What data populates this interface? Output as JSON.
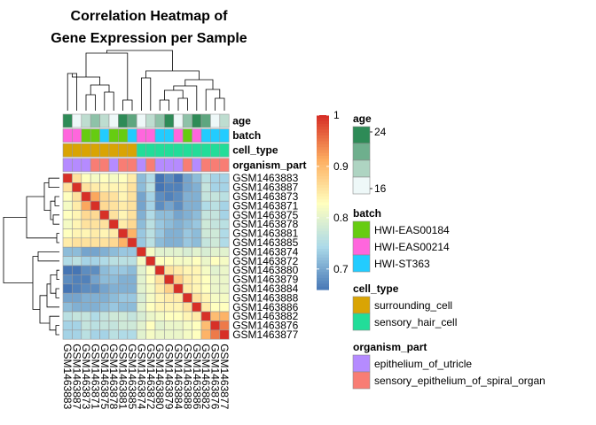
{
  "chart_data": {
    "type": "heatmap",
    "title_lines": [
      "Correlation Heatmap of",
      "Gene Expression per Sample"
    ],
    "samples": [
      "GSM1463883",
      "GSM1463887",
      "GSM1463873",
      "GSM1463871",
      "GSM1463875",
      "GSM1463878",
      "GSM1463881",
      "GSM1463885",
      "GSM1463874",
      "GSM1463872",
      "GSM1463880",
      "GSM1463879",
      "GSM1463884",
      "GSM1463888",
      "GSM1463886",
      "GSM1463882",
      "GSM1463876",
      "GSM1463877"
    ],
    "values": [
      [
        1.0,
        0.86,
        0.83,
        0.82,
        0.83,
        0.82,
        0.83,
        0.85,
        0.72,
        0.75,
        0.66,
        0.68,
        0.66,
        0.7,
        0.72,
        0.76,
        0.74,
        0.74
      ],
      [
        0.86,
        1.0,
        0.86,
        0.85,
        0.84,
        0.84,
        0.84,
        0.86,
        0.72,
        0.76,
        0.66,
        0.67,
        0.67,
        0.7,
        0.71,
        0.77,
        0.74,
        0.74
      ],
      [
        0.83,
        0.86,
        1.0,
        0.92,
        0.87,
        0.86,
        0.84,
        0.86,
        0.7,
        0.74,
        0.68,
        0.67,
        0.68,
        0.71,
        0.71,
        0.77,
        0.77,
        0.76
      ],
      [
        0.82,
        0.85,
        0.92,
        1.0,
        0.87,
        0.86,
        0.85,
        0.86,
        0.7,
        0.74,
        0.68,
        0.7,
        0.68,
        0.71,
        0.71,
        0.75,
        0.76,
        0.74
      ],
      [
        0.83,
        0.84,
        0.87,
        0.87,
        1.0,
        0.86,
        0.84,
        0.86,
        0.71,
        0.75,
        0.72,
        0.72,
        0.7,
        0.71,
        0.72,
        0.77,
        0.77,
        0.74
      ],
      [
        0.82,
        0.84,
        0.86,
        0.86,
        0.86,
        1.0,
        0.85,
        0.87,
        0.72,
        0.76,
        0.73,
        0.72,
        0.71,
        0.72,
        0.73,
        0.78,
        0.77,
        0.76
      ],
      [
        0.83,
        0.84,
        0.84,
        0.85,
        0.84,
        0.85,
        1.0,
        0.91,
        0.73,
        0.76,
        0.73,
        0.71,
        0.71,
        0.73,
        0.72,
        0.78,
        0.78,
        0.75
      ],
      [
        0.85,
        0.86,
        0.86,
        0.86,
        0.86,
        0.87,
        0.91,
        1.0,
        0.73,
        0.76,
        0.72,
        0.71,
        0.71,
        0.73,
        0.72,
        0.77,
        0.78,
        0.75
      ],
      [
        0.72,
        0.72,
        0.7,
        0.7,
        0.71,
        0.72,
        0.73,
        0.73,
        1.0,
        0.82,
        0.8,
        0.8,
        0.8,
        0.79,
        0.8,
        0.79,
        0.8,
        0.8
      ],
      [
        0.75,
        0.76,
        0.74,
        0.74,
        0.75,
        0.76,
        0.76,
        0.76,
        0.82,
        1.0,
        0.83,
        0.83,
        0.82,
        0.82,
        0.83,
        0.81,
        0.83,
        0.82
      ],
      [
        0.66,
        0.66,
        0.68,
        0.68,
        0.72,
        0.73,
        0.73,
        0.72,
        0.8,
        0.83,
        1.0,
        0.86,
        0.85,
        0.84,
        0.84,
        0.82,
        0.8,
        0.81
      ],
      [
        0.68,
        0.67,
        0.67,
        0.7,
        0.72,
        0.72,
        0.71,
        0.71,
        0.8,
        0.83,
        0.86,
        1.0,
        0.88,
        0.85,
        0.84,
        0.83,
        0.81,
        0.81
      ],
      [
        0.66,
        0.67,
        0.68,
        0.68,
        0.7,
        0.71,
        0.71,
        0.71,
        0.8,
        0.82,
        0.85,
        0.88,
        1.0,
        0.85,
        0.84,
        0.83,
        0.81,
        0.81
      ],
      [
        0.7,
        0.7,
        0.71,
        0.71,
        0.71,
        0.72,
        0.73,
        0.73,
        0.79,
        0.82,
        0.84,
        0.85,
        0.85,
        1.0,
        0.86,
        0.84,
        0.82,
        0.82
      ],
      [
        0.72,
        0.71,
        0.71,
        0.71,
        0.72,
        0.73,
        0.72,
        0.72,
        0.8,
        0.83,
        0.84,
        0.84,
        0.84,
        0.86,
        1.0,
        0.85,
        0.83,
        0.83
      ],
      [
        0.76,
        0.77,
        0.77,
        0.75,
        0.77,
        0.78,
        0.78,
        0.77,
        0.79,
        0.81,
        0.82,
        0.83,
        0.83,
        0.84,
        0.85,
        1.0,
        0.9,
        0.91
      ],
      [
        0.74,
        0.74,
        0.77,
        0.76,
        0.77,
        0.77,
        0.78,
        0.78,
        0.8,
        0.83,
        0.8,
        0.81,
        0.81,
        0.82,
        0.83,
        0.9,
        1.0,
        0.95
      ],
      [
        0.74,
        0.74,
        0.76,
        0.74,
        0.74,
        0.76,
        0.75,
        0.75,
        0.8,
        0.82,
        0.81,
        0.81,
        0.81,
        0.82,
        0.83,
        0.91,
        0.95,
        1.0
      ]
    ],
    "annotation_rows": [
      "age",
      "batch",
      "cell_type",
      "organism_part"
    ],
    "annotations": {
      "age": [
        24,
        16,
        18,
        20,
        18,
        16,
        24,
        22,
        16,
        18,
        20,
        24,
        16,
        20,
        24,
        22,
        16,
        18
      ],
      "batch": [
        "HWI-EAS00214",
        "HWI-EAS00214",
        "HWI-EAS00184",
        "HWI-EAS00184",
        "HWI-ST363",
        "HWI-EAS00184",
        "HWI-EAS00184",
        "HWI-ST363",
        "HWI-EAS00214",
        "HWI-EAS00214",
        "HWI-ST363",
        "HWI-ST363",
        "HWI-EAS00214",
        "HWI-EAS00184",
        "HWI-EAS00214",
        "HWI-ST363",
        "HWI-ST363",
        "HWI-ST363"
      ],
      "cell_type": [
        "surrounding_cell",
        "surrounding_cell",
        "surrounding_cell",
        "surrounding_cell",
        "surrounding_cell",
        "surrounding_cell",
        "surrounding_cell",
        "surrounding_cell",
        "sensory_hair_cell",
        "sensory_hair_cell",
        "sensory_hair_cell",
        "sensory_hair_cell",
        "sensory_hair_cell",
        "sensory_hair_cell",
        "sensory_hair_cell",
        "sensory_hair_cell",
        "sensory_hair_cell",
        "sensory_hair_cell"
      ],
      "organism_part": [
        "epithelium_of_utricle",
        "epithelium_of_utricle",
        "epithelium_of_utricle",
        "sensory_epithelium_of_spiral_organ",
        "sensory_epithelium_of_spiral_organ",
        "epithelium_of_utricle",
        "sensory_epithelium_of_spiral_organ",
        "sensory_epithelium_of_spiral_organ",
        "epithelium_of_utricle",
        "sensory_epithelium_of_spiral_organ",
        "epithelium_of_utricle",
        "epithelium_of_utricle",
        "epithelium_of_utricle",
        "sensory_epithelium_of_spiral_organ",
        "epithelium_of_utricle",
        "sensory_epithelium_of_spiral_organ",
        "sensory_epithelium_of_spiral_organ",
        "sensory_epithelium_of_spiral_organ"
      ]
    },
    "color_scale": {
      "min": 0.66,
      "max": 1.0,
      "stops": [
        "#4575b4",
        "#abd9e9",
        "#ffffbf",
        "#fdae61",
        "#d73027"
      ],
      "ticks": [
        0.7,
        0.8,
        0.9,
        1
      ]
    },
    "legend": {
      "age": {
        "title": "age",
        "ticks": [
          24,
          16
        ],
        "colors": [
          "#2e8b57",
          "#eef8f8"
        ]
      },
      "batch": {
        "title": "batch",
        "items": [
          {
            "label": "HWI-EAS00184",
            "color": "#66cc11"
          },
          {
            "label": "HWI-EAS00214",
            "color": "#ff66dd"
          },
          {
            "label": "HWI-ST363",
            "color": "#22ccff"
          }
        ]
      },
      "cell_type": {
        "title": "cell_type",
        "items": [
          {
            "label": "surrounding_cell",
            "color": "#d9a404"
          },
          {
            "label": "sensory_hair_cell",
            "color": "#22dd99"
          }
        ]
      },
      "organism_part": {
        "title": "organism_part",
        "items": [
          {
            "label": "epithelium_of_utricle",
            "color": "#b58bff"
          },
          {
            "label": "sensory_epithelium_of_spiral_organ",
            "color": "#f87d74"
          }
        ]
      }
    }
  }
}
